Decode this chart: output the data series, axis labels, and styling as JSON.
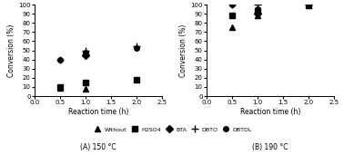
{
  "left": {
    "title": "(A) 150 °C",
    "series": {
      "Without": {
        "times": [
          0.5,
          1.0
        ],
        "values": [
          9,
          8
        ],
        "marker": "^",
        "color": "black"
      },
      "H2SO4": {
        "times": [
          0.5,
          1.0,
          2.0
        ],
        "values": [
          10,
          15,
          18
        ],
        "marker": "s",
        "color": "black"
      },
      "BTA": {
        "times": [
          1.0
        ],
        "values": [
          45
        ],
        "marker": "D",
        "color": "black"
      },
      "DBTO": {
        "times": [
          0.5,
          1.0,
          2.0
        ],
        "values": [
          40,
          50,
          55
        ],
        "marker": "+",
        "color": "black"
      },
      "DBTDL": {
        "times": [
          0.5,
          1.0,
          2.0
        ],
        "values": [
          40,
          48,
          53
        ],
        "marker": "o",
        "color": "black"
      }
    },
    "xlim": [
      0,
      2.5
    ],
    "ylim": [
      0,
      100
    ],
    "xticks": [
      0,
      0.5,
      1.0,
      1.5,
      2.0,
      2.5
    ],
    "yticks": [
      0,
      10,
      20,
      30,
      40,
      50,
      60,
      70,
      80,
      90,
      100
    ]
  },
  "right": {
    "title": "(B) 190 °C",
    "series": {
      "Without": {
        "times": [
          0.5,
          1.0
        ],
        "values": [
          75,
          88
        ],
        "marker": "^",
        "color": "black"
      },
      "H2SO4": {
        "times": [
          0.5,
          1.0,
          2.0
        ],
        "values": [
          88,
          93,
          99
        ],
        "marker": "s",
        "color": "black"
      },
      "BTA": {
        "times": [
          1.0
        ],
        "values": [
          90
        ],
        "marker": "D",
        "color": "black"
      },
      "DBTO": {
        "times": [
          0.5,
          1.0,
          2.0
        ],
        "values": [
          100,
          100,
          100
        ],
        "marker": "+",
        "color": "black"
      },
      "DBTDL": {
        "times": [
          0.5,
          1.0,
          2.0
        ],
        "values": [
          100,
          95,
          100
        ],
        "marker": "o",
        "color": "black"
      }
    },
    "xlim": [
      0,
      2.5
    ],
    "ylim": [
      0,
      100
    ],
    "xticks": [
      0,
      0.5,
      1.0,
      1.5,
      2.0,
      2.5
    ],
    "yticks": [
      0,
      10,
      20,
      30,
      40,
      50,
      60,
      70,
      80,
      90,
      100
    ]
  },
  "legend": {
    "labels": [
      "Without",
      "H2SO4",
      "BTA",
      "DBTO",
      "DBTDL"
    ],
    "markers": [
      "^",
      "s",
      "D",
      "+",
      "o"
    ]
  },
  "xlabel": "Reaction time (h)",
  "ylabel": "Conversion (%)",
  "background_color": "#ffffff"
}
